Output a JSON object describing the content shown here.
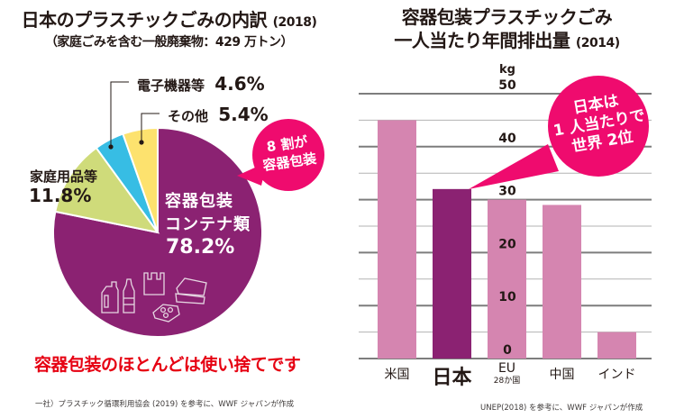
{
  "left_panel": {
    "title": "日本のプラスチックごみの内訳",
    "title_year": "(2018)",
    "subtitle": "（家庭ごみを含む一般廃棄物：429 万トン）",
    "bubble": {
      "line1": "8 割が",
      "line2": "容器包装"
    },
    "note": "容器包装のほとんどは使い捨てです",
    "source": "一社）プラスチック循環利用協会 (2019) を参考に、WWF ジャパンが作成",
    "slice_labels": {
      "containers": {
        "line1": "容器包装",
        "line2": "コンテナ類",
        "pct": "78.2%"
      },
      "household": {
        "name": "家庭用品等",
        "pct": "11.8%"
      },
      "electronics": {
        "name": "電子機器等",
        "pct": "4.6%"
      },
      "other": {
        "name": "その他",
        "pct": "5.4%"
      }
    }
  },
  "right_panel": {
    "title_line1": "容器包装プラスチックごみ",
    "title_line2": "一人当たり年間排出量",
    "title_year": "(2014)",
    "bubble": {
      "line1": "日本は",
      "line2": "1 人当たりで",
      "line3": "世界 2位"
    },
    "source": "UNEP(2018) を参考に、WWF ジャパンが作成",
    "eu_sub": "28か国"
  },
  "colors": {
    "purple": "#8b2272",
    "pink_bar": "#d585b0",
    "green": "#cfdb7a",
    "blue": "#37bde4",
    "yellow": "#fde26e",
    "magenta": "#ef0b6e",
    "red_text": "#e60012",
    "grid_major": "#7d7d7d",
    "grid_minor": "#b3b3b3"
  },
  "chart_data": [
    {
      "type": "pie",
      "title": "日本のプラスチックごみの内訳 (2018)",
      "subtitle": "（家庭ごみを含む一般廃棄物：429 万トン）",
      "unit": "%",
      "start": "12 o'clock, clockwise",
      "slices": [
        {
          "label": "容器包装 コンテナ類",
          "value": 78.2,
          "color": "#8b2272"
        },
        {
          "label": "家庭用品等",
          "value": 11.8,
          "color": "#cfdb7a"
        },
        {
          "label": "電子機器等",
          "value": 4.6,
          "color": "#37bde4"
        },
        {
          "label": "その他",
          "value": 5.4,
          "color": "#fde26e"
        }
      ]
    },
    {
      "type": "bar",
      "title": "容器包装プラスチックごみ 一人当たり年間排出量 (2014)",
      "ylabel": "kg",
      "xlabel": "",
      "ylim": [
        0,
        50
      ],
      "yticks": [
        0,
        10,
        20,
        30,
        40,
        50
      ],
      "minor_grid_step": 5,
      "grid": true,
      "categories": [
        "米国",
        "日本",
        "EU",
        "中国",
        "インド"
      ],
      "values": [
        45,
        32,
        30,
        29,
        5
      ],
      "highlight": "日本",
      "colors": [
        "#d585b0",
        "#8b2272",
        "#d585b0",
        "#d585b0",
        "#d585b0"
      ]
    }
  ]
}
